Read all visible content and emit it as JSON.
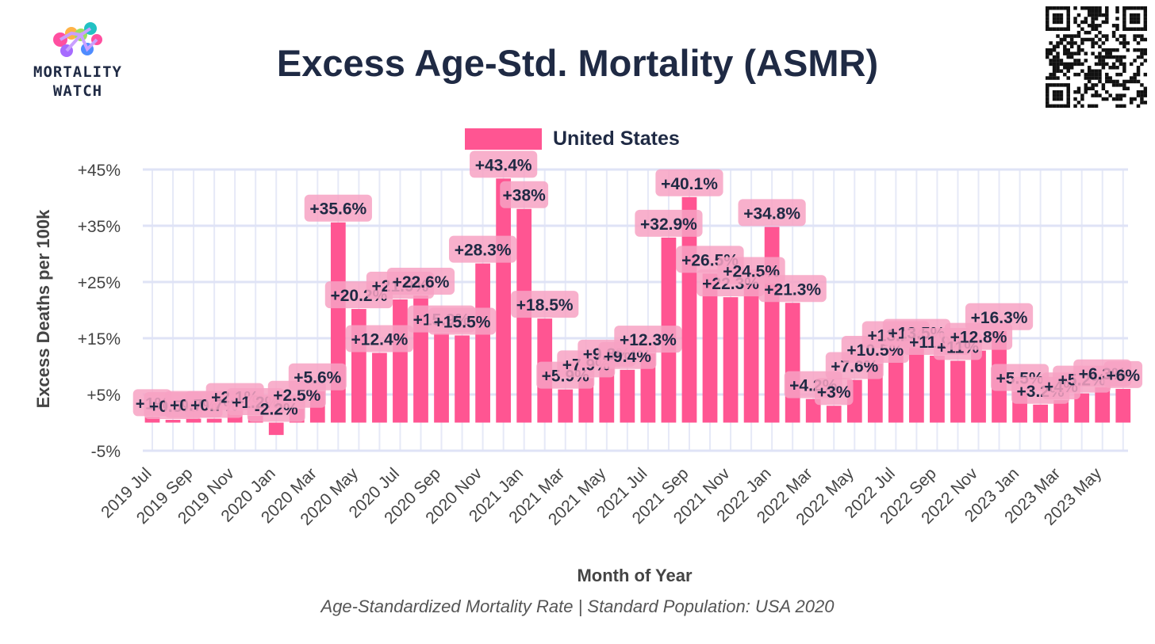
{
  "header": {
    "title": "Excess Age-Std. Mortality (ASMR)",
    "logo_line1": "MORTALITY",
    "logo_line2": "WATCH"
  },
  "legend": {
    "label": "United States",
    "color": "#ff5592"
  },
  "subtitle": "Age-Standardized Mortality Rate | Standard Population: USA 2020",
  "chart_data": {
    "type": "bar",
    "title": "Excess Age-Std. Mortality (ASMR)",
    "xlabel": "Month of Year",
    "ylabel": "Excess Deaths per 100k",
    "ylim": [
      -5,
      45
    ],
    "yticks": [
      -5,
      5,
      15,
      25,
      35,
      45
    ],
    "ytick_labels": [
      "-5%",
      "+5%",
      "+15%",
      "+25%",
      "+35%",
      "+45%"
    ],
    "grid": true,
    "legend_position": "top-center",
    "bar_color": "#ff5592",
    "label_bg": "#f7a2c3",
    "label_text_color": "#1f2a44",
    "categories": [
      "2019 Jul",
      "2019 Aug",
      "2019 Sep",
      "2019 Oct",
      "2019 Nov",
      "2019 Dec",
      "2020 Jan",
      "2020 Feb",
      "2020 Mar",
      "2020 Apr",
      "2020 May",
      "2020 Jun",
      "2020 Jul",
      "2020 Aug",
      "2020 Sep",
      "2020 Oct",
      "2020 Nov",
      "2020 Dec",
      "2021 Jan",
      "2021 Feb",
      "2021 Mar",
      "2021 Apr",
      "2021 May",
      "2021 Jun",
      "2021 Jul",
      "2021 Aug",
      "2021 Sep",
      "2021 Oct",
      "2021 Nov",
      "2021 Dec",
      "2022 Jan",
      "2022 Feb",
      "2022 Mar",
      "2022 Apr",
      "2022 May",
      "2022 Jun",
      "2022 Jul",
      "2022 Aug",
      "2022 Sep",
      "2022 Oct",
      "2022 Nov",
      "2022 Dec",
      "2023 Jan",
      "2023 Feb",
      "2023 Mar",
      "2023 Apr",
      "2023 May",
      "2023 Jun"
    ],
    "tick_categories": [
      "2019 Jul",
      "2019 Sep",
      "2019 Nov",
      "2020 Jan",
      "2020 Mar",
      "2020 May",
      "2020 Jul",
      "2020 Sep",
      "2020 Nov",
      "2021 Jan",
      "2021 Mar",
      "2021 May",
      "2021 Jul",
      "2021 Sep",
      "2021 Nov",
      "2022 Jan",
      "2022 Mar",
      "2022 May",
      "2022 Jul",
      "2022 Sep",
      "2022 Nov",
      "2023 Jan",
      "2023 Mar",
      "2023 May"
    ],
    "series": [
      {
        "name": "United States",
        "values": [
          1,
          0.5,
          0.7,
          0.7,
          2.1,
          1.2,
          -2.2,
          2.5,
          5.6,
          35.6,
          20.2,
          12.4,
          21.9,
          22.6,
          15.9,
          15.5,
          28.3,
          43.4,
          38,
          18.5,
          5.9,
          7.9,
          9.8,
          9.4,
          12.3,
          32.9,
          40.1,
          26.5,
          22.3,
          24.5,
          34.8,
          21.3,
          4.2,
          3,
          7.6,
          10.5,
          13.1,
          13.5,
          11.9,
          11,
          12.8,
          16.3,
          5.5,
          3.2,
          4,
          5.2,
          6.3,
          6
        ],
        "labels": [
          "+1%",
          "+0.5%",
          "+0.7%",
          "+0.7%",
          "+2.1%",
          "+1.2%",
          "-2.2%",
          "+2.5%",
          "+5.6%",
          "+35.6%",
          "+20.2%",
          "+12.4%",
          "+21.9%",
          "+22.6%",
          "+15.9%",
          "+15.5%",
          "+28.3%",
          "+43.4%",
          "+38%",
          "+18.5%",
          "+5.9%",
          "+7.9%",
          "+9.8%",
          "+9.4%",
          "+12.3%",
          "+32.9%",
          "+40.1%",
          "+26.5%",
          "+22.3%",
          "+24.5%",
          "+34.8%",
          "+21.3%",
          "+4.2%",
          "+3%",
          "+7.6%",
          "+10.5%",
          "+13.1%",
          "+13.5%",
          "+11.9%",
          "+11%",
          "+12.8%",
          "+16.3%",
          "+5.5%",
          "+3.2%",
          "+4%",
          "+5.2%",
          "+6.3%",
          "+6%"
        ]
      }
    ]
  }
}
